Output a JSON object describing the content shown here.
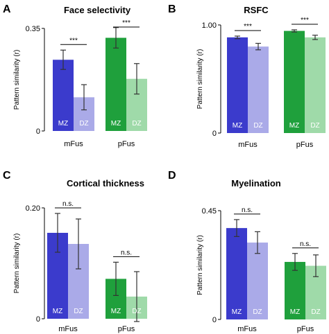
{
  "colors": {
    "mFus_MZ": "#3b3bcc",
    "mFus_DZ": "#aaaae8",
    "pFus_MZ": "#1fa03c",
    "pFus_DZ": "#9fdaa9"
  },
  "chart_data": [
    {
      "type": "bar",
      "panel": "A",
      "title": "Face selectivity",
      "ylabel": "Pattern similarity (r)",
      "ylim": [
        0,
        0.35
      ],
      "yticks": [
        "0",
        "0.35"
      ],
      "categories": [
        "mFus",
        "pFus"
      ],
      "series": [
        {
          "name": "MZ",
          "values": [
            0.243,
            0.318
          ],
          "errors": [
            0.033,
            0.035
          ]
        },
        {
          "name": "DZ",
          "values": [
            0.115,
            0.178
          ],
          "errors": [
            0.043,
            0.052
          ]
        }
      ],
      "significance": [
        "***",
        "***"
      ]
    },
    {
      "type": "bar",
      "panel": "B",
      "title": "RSFC",
      "ylabel": "Pattern similarity (r)",
      "ylim": [
        0,
        1.0
      ],
      "yticks": [
        "0",
        "1.00"
      ],
      "categories": [
        "mFus",
        "pFus"
      ],
      "series": [
        {
          "name": "MZ",
          "values": [
            0.885,
            0.945
          ],
          "errors": [
            0.012,
            0.01
          ]
        },
        {
          "name": "DZ",
          "values": [
            0.8,
            0.885
          ],
          "errors": [
            0.03,
            0.02
          ]
        }
      ],
      "significance": [
        "***",
        "***"
      ]
    },
    {
      "type": "bar",
      "panel": "C",
      "title": "Cortical thickness",
      "ylabel": "Pattern similarity (r)",
      "ylim": [
        0,
        0.2
      ],
      "yticks": [
        "0",
        "0.20"
      ],
      "categories": [
        "mFus",
        "pFus"
      ],
      "series": [
        {
          "name": "MZ",
          "values": [
            0.155,
            0.072
          ],
          "errors": [
            0.035,
            0.03
          ]
        },
        {
          "name": "DZ",
          "values": [
            0.135,
            0.04
          ],
          "errors": [
            0.045,
            0.045
          ]
        }
      ],
      "significance": [
        "n.s.",
        "n.s."
      ]
    },
    {
      "type": "bar",
      "panel": "D",
      "title": "Myelination",
      "ylabel": "Pattern similarity (r)",
      "ylim": [
        0,
        0.45
      ],
      "yticks": [
        "0",
        "0.45"
      ],
      "categories": [
        "mFus",
        "pFus"
      ],
      "series": [
        {
          "name": "MZ",
          "values": [
            0.378,
            0.238
          ],
          "errors": [
            0.035,
            0.035
          ]
        },
        {
          "name": "DZ",
          "values": [
            0.318,
            0.222
          ],
          "errors": [
            0.045,
            0.045
          ]
        }
      ],
      "significance": [
        "n.s.",
        "n.s."
      ]
    }
  ]
}
